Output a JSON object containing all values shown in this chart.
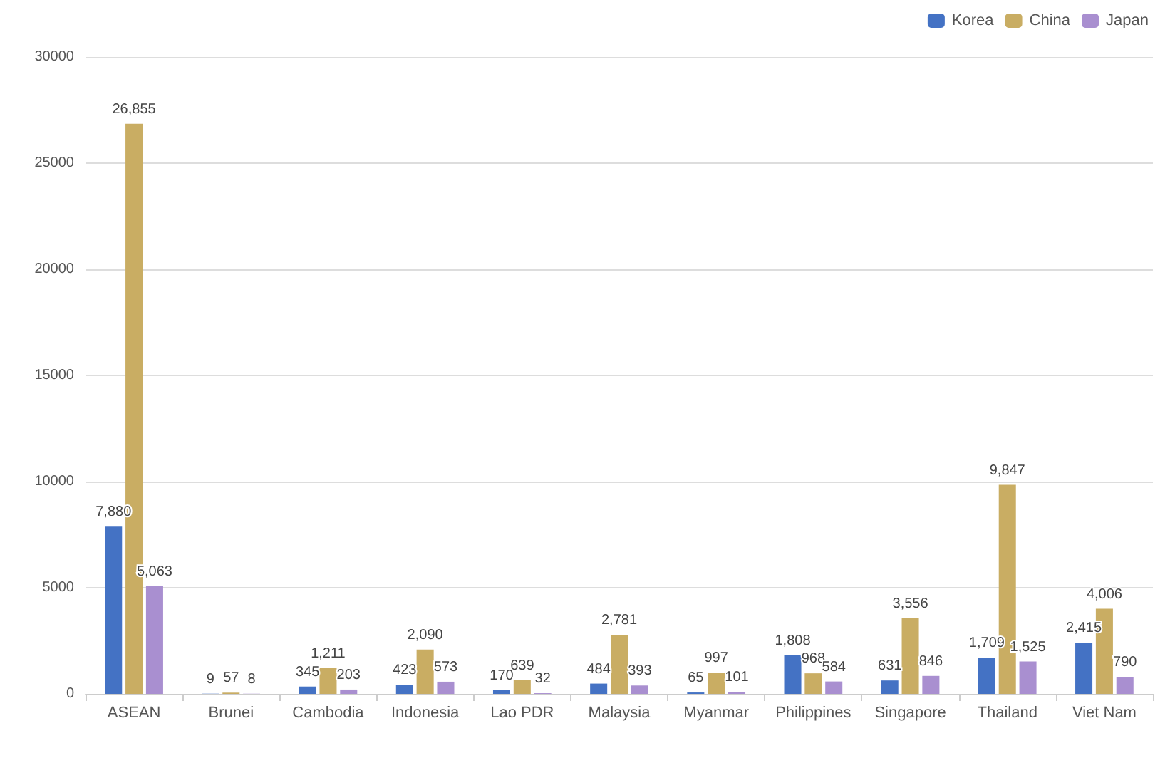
{
  "chart_data": {
    "type": "bar",
    "categories": [
      "ASEAN",
      "Brunei",
      "Cambodia",
      "Indonesia",
      "Lao PDR",
      "Malaysia",
      "Myanmar",
      "Philippines",
      "Singapore",
      "Thailand",
      "Viet Nam"
    ],
    "series": [
      {
        "name": "Korea",
        "color": "#4472c4",
        "values": [
          7880,
          9,
          345,
          423,
          170,
          484,
          65,
          1808,
          631,
          1709,
          2415
        ],
        "value_labels": [
          "7,880",
          "9",
          "345",
          "423",
          "170",
          "484",
          "65",
          "1,808",
          "631",
          "1,709",
          "2,415"
        ]
      },
      {
        "name": "China",
        "color": "#c9ad63",
        "values": [
          26855,
          57,
          1211,
          2090,
          639,
          2781,
          997,
          968,
          3556,
          9847,
          4006
        ],
        "value_labels": [
          "26,855",
          "57",
          "1,211",
          "2,090",
          "639",
          "2,781",
          "997",
          "968",
          "3,556",
          "9,847",
          "4,006"
        ]
      },
      {
        "name": "Japan",
        "color": "#a98fd0",
        "values": [
          5063,
          8,
          203,
          573,
          32,
          393,
          101,
          584,
          846,
          1525,
          790
        ],
        "value_labels": [
          "5,063",
          "8",
          "203",
          "573",
          "32",
          "393",
          "101",
          "584",
          "846",
          "1,525",
          "790"
        ]
      }
    ],
    "ylim": [
      0,
      30000
    ],
    "yticks": [
      0,
      5000,
      10000,
      15000,
      20000,
      25000,
      30000
    ],
    "grid": "y",
    "legend": "top right"
  }
}
